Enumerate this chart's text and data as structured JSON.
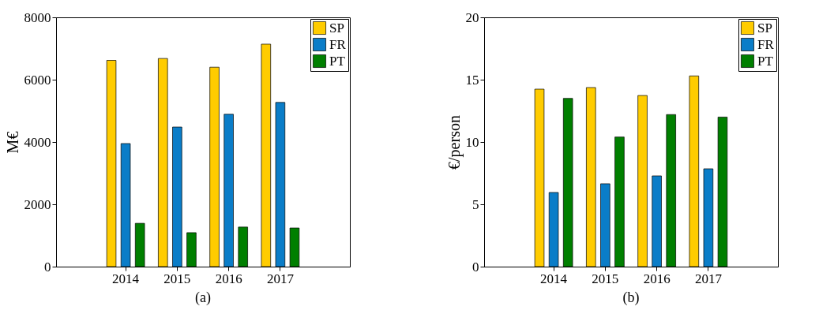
{
  "chart_data": [
    {
      "type": "bar",
      "title": "(a)",
      "ylabel": "M€",
      "categories": [
        "2014",
        "2015",
        "2016",
        "2017"
      ],
      "ylim": [
        0,
        8000
      ],
      "yticks": [
        0,
        2000,
        4000,
        6000,
        8000
      ],
      "grid": false,
      "legend": "top right",
      "series": [
        {
          "name": "SP",
          "color": "#ffcc00",
          "values": [
            6620,
            6680,
            6400,
            7140
          ]
        },
        {
          "name": "FR",
          "color": "#0a7dc8",
          "values": [
            3950,
            4480,
            4890,
            5270
          ]
        },
        {
          "name": "PT",
          "color": "#007f00",
          "values": [
            1390,
            1090,
            1270,
            1240
          ]
        }
      ]
    },
    {
      "type": "bar",
      "title": "(b)",
      "ylabel": "€/person",
      "categories": [
        "2014",
        "2015",
        "2016",
        "2017"
      ],
      "ylim": [
        0,
        20
      ],
      "yticks": [
        0,
        5,
        10,
        15,
        20
      ],
      "grid": false,
      "legend": "top right",
      "series": [
        {
          "name": "SP",
          "color": "#ffcc00",
          "values": [
            14.24,
            14.37,
            13.73,
            15.3
          ]
        },
        {
          "name": "FR",
          "color": "#0a7dc8",
          "values": [
            5.95,
            6.65,
            7.28,
            7.85
          ]
        },
        {
          "name": "PT",
          "color": "#007f00",
          "values": [
            13.5,
            10.4,
            12.2,
            12.0
          ]
        }
      ]
    }
  ]
}
